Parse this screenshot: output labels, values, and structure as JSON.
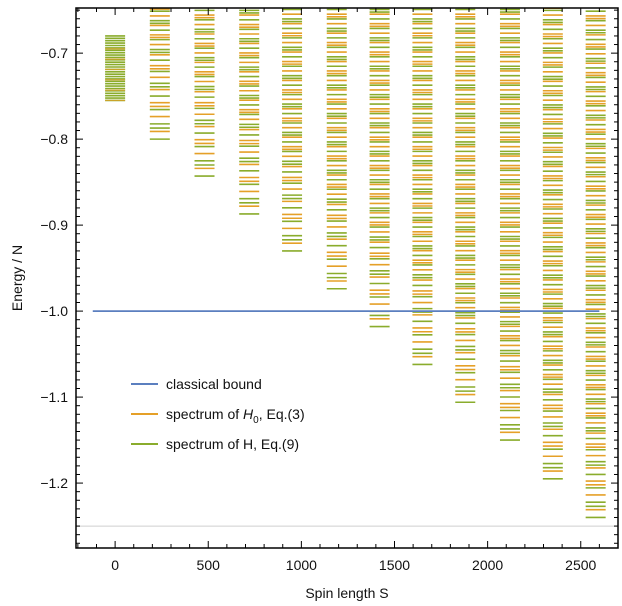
{
  "chart_data": {
    "type": "scatter",
    "xlabel": "Spin length S",
    "ylabel": "Energy / N",
    "xlim": [
      -210,
      2700
    ],
    "ylim": [
      -1.2755,
      -0.6475
    ],
    "x_ticks": [
      0,
      500,
      1000,
      1500,
      2000,
      2500
    ],
    "x_tick_labels": [
      "0",
      "500",
      "1000",
      "1500",
      "2000",
      "2500"
    ],
    "y_ticks": [
      -0.7,
      -0.8,
      -0.9,
      -1.0,
      -1.1,
      -1.2
    ],
    "y_tick_labels": [
      "−0.7",
      "−0.8",
      "−0.9",
      "−1.0",
      "−1.1",
      "−1.2"
    ],
    "grid": false,
    "legend_position": "lower-left",
    "classical_bound": {
      "y": -1.0,
      "x_range": [
        -120,
        2600
      ],
      "color": "#5b7fbf"
    },
    "reference_line": {
      "y": -1.25,
      "color": "#cfcfcf"
    },
    "series_meta": [
      {
        "name": "classical bound",
        "color": "#5b7fbf"
      },
      {
        "name": "spectrum of H₀, Eq.(3)",
        "name_main": "spectrum of ",
        "name_symbol": "H",
        "name_sub": "0",
        "name_tail": ", Eq.(3)",
        "color": "#e5a028"
      },
      {
        "name": "spectrum of H, Eq.(9)",
        "color": "#8aac2c"
      }
    ],
    "spectrum_columns": [
      {
        "S": 0,
        "min_energy": -0.755,
        "dense": true
      },
      {
        "S": 240,
        "min_energy": -0.8
      },
      {
        "S": 480,
        "min_energy": -0.843
      },
      {
        "S": 720,
        "min_energy": -0.887
      },
      {
        "S": 950,
        "min_energy": -0.93
      },
      {
        "S": 1190,
        "min_energy": -0.974
      },
      {
        "S": 1420,
        "min_energy": -1.018
      },
      {
        "S": 1650,
        "min_energy": -1.062
      },
      {
        "S": 1880,
        "min_energy": -1.106
      },
      {
        "S": 2120,
        "min_energy": -1.15
      },
      {
        "S": 2350,
        "min_energy": -1.195
      },
      {
        "S": 2580,
        "min_energy": -1.24
      }
    ]
  }
}
